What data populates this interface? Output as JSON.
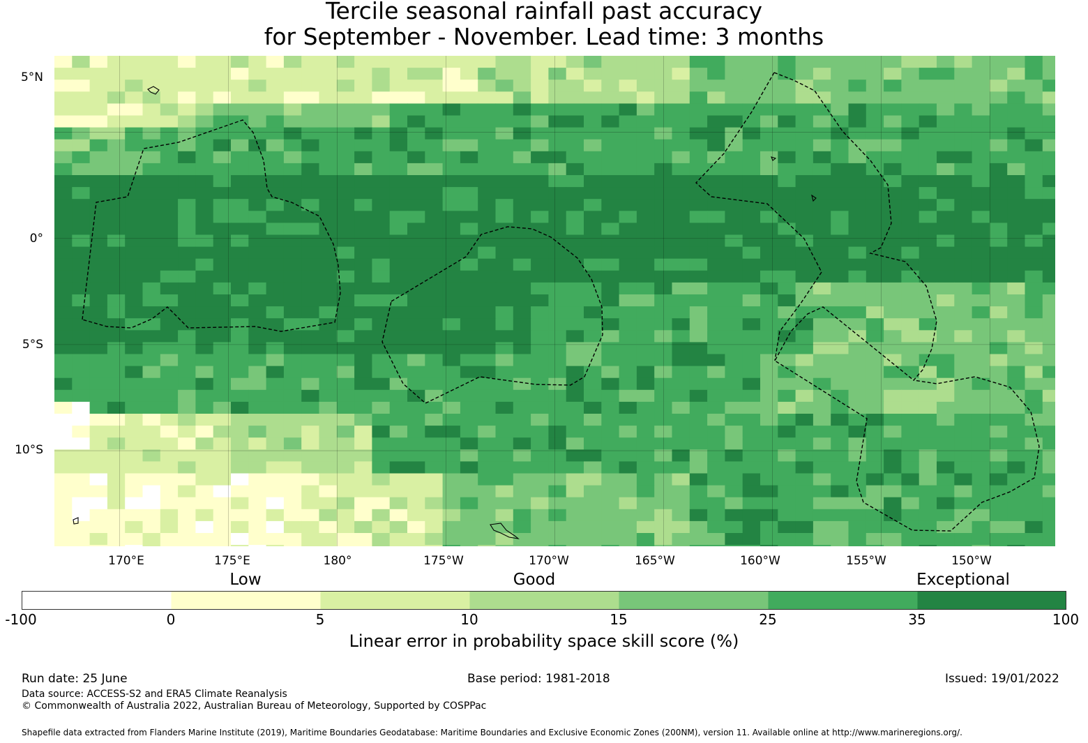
{
  "title": {
    "line1": "Tercile seasonal rainfall past accuracy",
    "line2": "for September - November. Lead time: 3 months"
  },
  "map": {
    "lon_range": [
      167.0,
      213.0
    ],
    "lat_range": [
      -14.5,
      8.6
    ],
    "grid_lats": [
      5,
      0,
      -5,
      -10
    ],
    "grid_lons": [
      170,
      175,
      180,
      185,
      190,
      195,
      200,
      205,
      210
    ],
    "lat_labels": [
      "5°N",
      "0°",
      "5°S",
      "10°S"
    ],
    "lon_labels": [
      "170°E",
      "175°E",
      "180°",
      "175°W",
      "170°W",
      "165°W",
      "160°W",
      "155°W",
      "150°W"
    ],
    "eez_colors": {
      "line": "#000000"
    }
  },
  "colorbar": {
    "categories": [
      "Low",
      "Good",
      "Exceptional"
    ],
    "ticks": [
      "-100",
      "0",
      "5",
      "10",
      "15",
      "25",
      "35",
      "100"
    ],
    "colors": [
      "#ffffff",
      "#ffffcc",
      "#d9f0a3",
      "#addd8e",
      "#78c679",
      "#41ab5d",
      "#238443"
    ],
    "label": "Linear error in probability space skill score (%)"
  },
  "footer": {
    "run_date": "Run date: 25 June",
    "base_period": "Base period: 1981-2018",
    "issued": "Issued: 19/01/2022",
    "data_source": "Data source: ACCESS-S2 and ERA5 Climate Reanalysis",
    "copyright": "© Commonwealth of Australia 2022, Australian Bureau of Meteorology, Supported by COSPPac",
    "shapefile": "Shapefile data extracted from Flanders Marine Institute (2019), Maritime Boundaries Geodatabase: Maritime Boundaries and Exclusive Economic Zones (200NM), version 11. Available online at http://www.marineregions.org/."
  }
}
